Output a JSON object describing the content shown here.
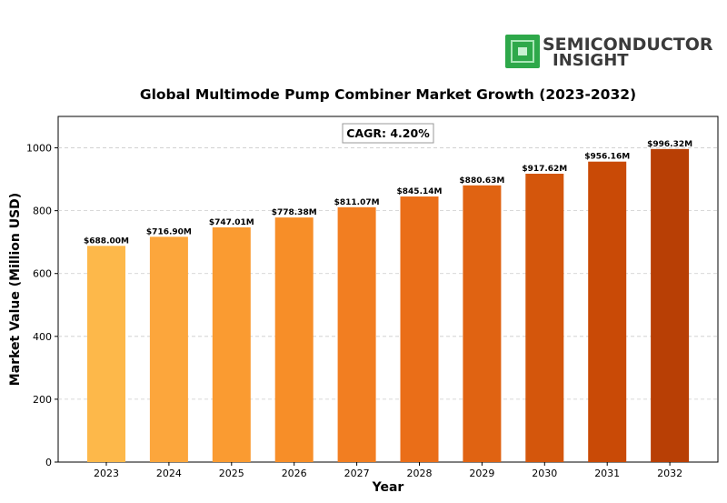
{
  "logo": {
    "line1": "SEMICONDUCTOR",
    "line2": "INSIGHT",
    "chip_color": "#2ea84a"
  },
  "chart_data": {
    "type": "bar",
    "title": "Global Multimode Pump Combiner Market Growth (2023-2032)",
    "xlabel": "Year",
    "ylabel": "Market Value (Million USD)",
    "categories": [
      "2023",
      "2024",
      "2025",
      "2026",
      "2027",
      "2028",
      "2029",
      "2030",
      "2031",
      "2032"
    ],
    "values": [
      688.0,
      716.9,
      747.01,
      778.38,
      811.07,
      845.14,
      880.63,
      917.62,
      956.16,
      996.32
    ],
    "data_labels": [
      "$688.00M",
      "$716.90M",
      "$747.01M",
      "$778.38M",
      "$811.07M",
      "$845.14M",
      "$880.63M",
      "$917.62M",
      "$956.16M",
      "$996.32M"
    ],
    "colors": [
      "#fdb84a",
      "#fca63c",
      "#fa9b31",
      "#f78e28",
      "#f27e21",
      "#ea6e18",
      "#e06312",
      "#d4560c",
      "#c94a06",
      "#b83f05"
    ],
    "ylim": [
      0,
      1100
    ],
    "yticks": [
      0,
      200,
      400,
      600,
      800,
      1000
    ],
    "grid": true,
    "annotation": "CAGR: 4.20%"
  }
}
